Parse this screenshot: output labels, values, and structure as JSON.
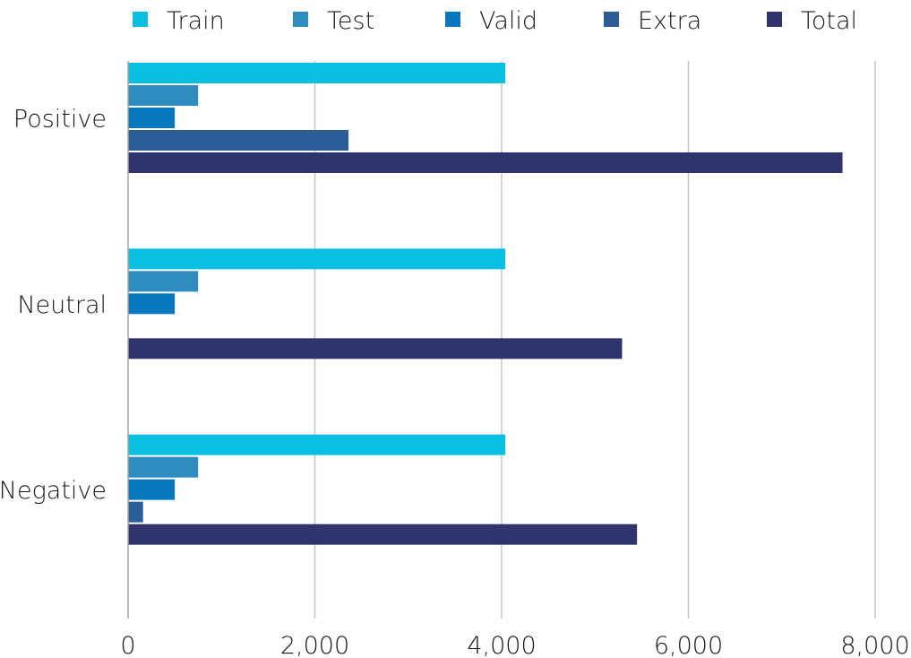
{
  "chart_data": {
    "type": "bar",
    "orientation": "horizontal",
    "categories": [
      "Positive",
      "Neutral",
      "Negative"
    ],
    "series": [
      {
        "name": "Train",
        "color": "#0bbfe0",
        "values": [
          4040,
          4040,
          4040
        ]
      },
      {
        "name": "Test",
        "color": "#2e8cbf",
        "values": [
          750,
          750,
          750
        ]
      },
      {
        "name": "Valid",
        "color": "#0a78be",
        "values": [
          500,
          500,
          500
        ]
      },
      {
        "name": "Extra",
        "color": "#2b5d96",
        "values": [
          2360,
          0,
          160
        ]
      },
      {
        "name": "Total",
        "color": "#2f346c",
        "values": [
          7650,
          5290,
          5450
        ]
      }
    ],
    "xlim": [
      0,
      8000
    ],
    "x_ticks": [
      "0",
      "2,000",
      "4,000",
      "6,000",
      "8,000"
    ],
    "x_tick_values": [
      0,
      2000,
      4000,
      6000,
      8000
    ],
    "grid": true,
    "legend_position": "top"
  }
}
